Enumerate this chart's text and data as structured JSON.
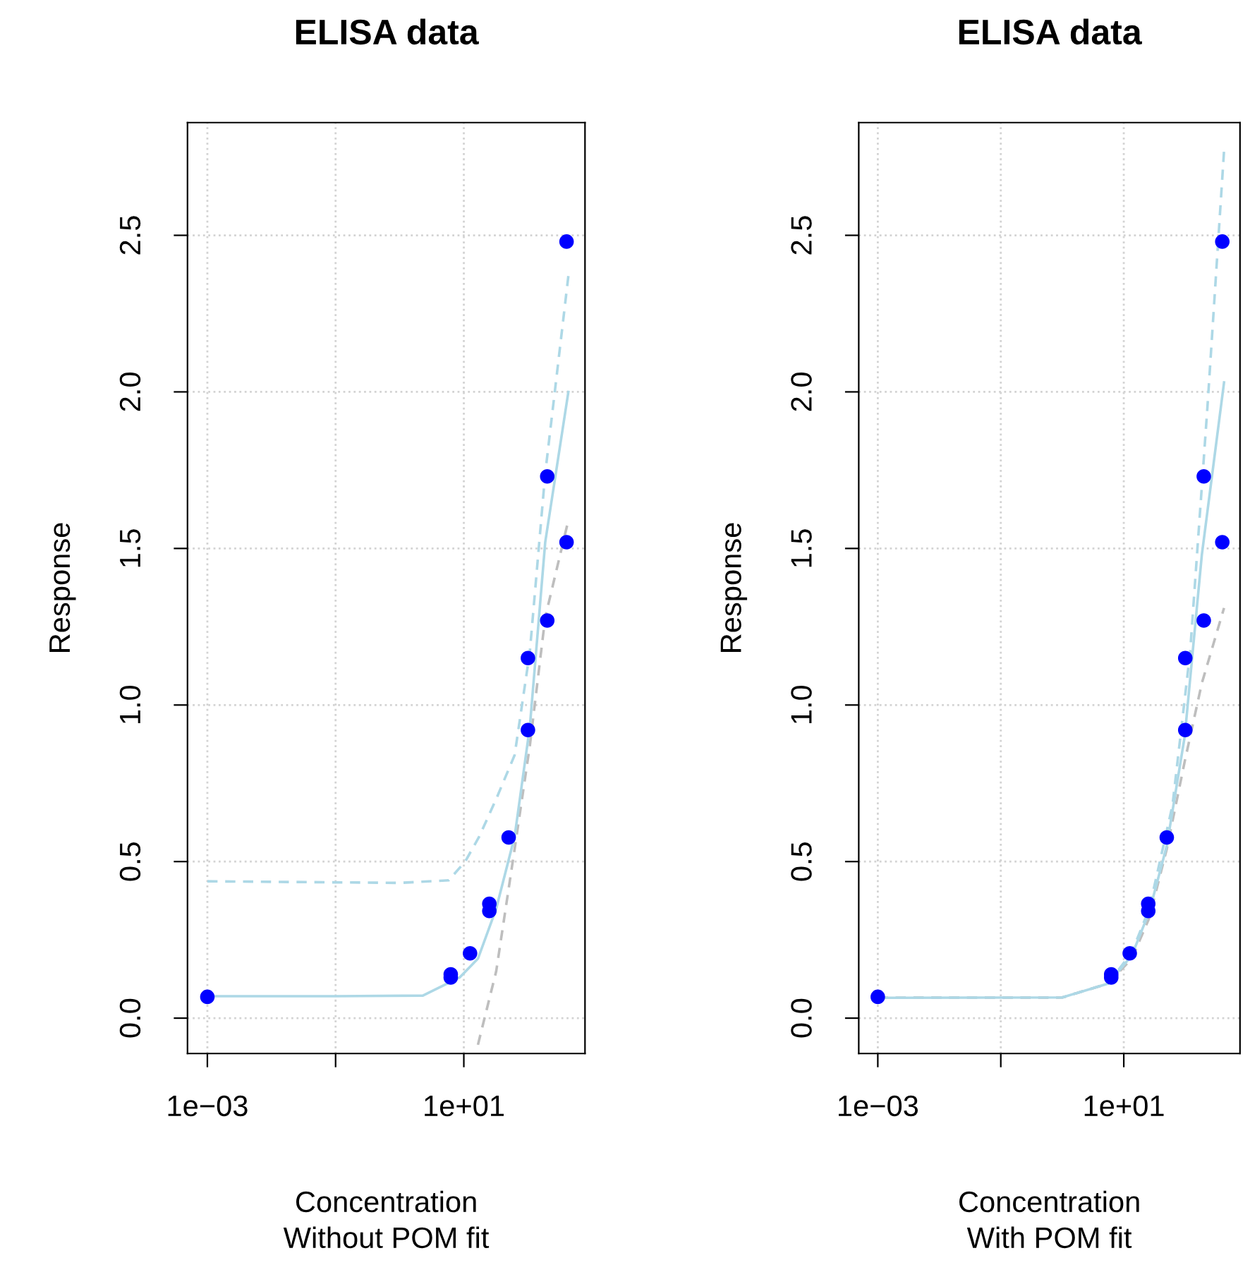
{
  "chart_data": [
    {
      "type": "line",
      "title": "ELISA data",
      "xlabel": "Concentration\nWithout POM fit",
      "ylabel": "Response",
      "log": "x",
      "grid": true,
      "xlim": [
        0.00049,
        776
      ],
      "ylim": [
        -0.113,
        2.86
      ],
      "xticks": [
        {
          "value": 0.001,
          "label": "1e−03"
        },
        {
          "value": 0.1,
          "label": null
        },
        {
          "value": 10,
          "label": "1e+01"
        }
      ],
      "yticks": [
        {
          "value": 0,
          "label": "0.0"
        },
        {
          "value": 0.5,
          "label": "0.5"
        },
        {
          "value": 1,
          "label": "1.0"
        },
        {
          "value": 1.5,
          "label": "1.5"
        },
        {
          "value": 2,
          "label": "2.0"
        },
        {
          "value": 2.5,
          "label": "2.5"
        }
      ],
      "series": [
        {
          "line_style": "dashed",
          "color": "#add8e6",
          "x": [
            0.001,
            1,
            5.8,
            10.5,
            17.4,
            32,
            62,
            107,
            186,
            427
          ],
          "values": [
            0.437,
            0.432,
            0.44,
            0.5,
            0.58,
            0.7,
            0.84,
            1.17,
            1.74,
            2.37
          ]
        },
        {
          "line_style": "dashed",
          "color": "#bebebe",
          "x": [
            16.6,
            32,
            62,
            107,
            186,
            427
          ],
          "values": [
            -0.085,
            0.15,
            0.54,
            0.87,
            1.28,
            1.59
          ]
        },
        {
          "line_style": "solid",
          "color": "#add8e6",
          "x": [
            0.001,
            0.1,
            2.3,
            8.6,
            16.6,
            32,
            62,
            107,
            186,
            427
          ],
          "values": [
            0.07,
            0.07,
            0.072,
            0.13,
            0.19,
            0.35,
            0.58,
            0.93,
            1.52,
            2.0
          ]
        },
        {
          "type": "scatter",
          "marker": "circle",
          "color": "#0000ff",
          "x": [
            0.001,
            6.25,
            6.25,
            12.5,
            25,
            25,
            50,
            100,
            100,
            200,
            200,
            400,
            400
          ],
          "values": [
            0.068,
            0.14,
            0.13,
            0.207,
            0.365,
            0.342,
            0.577,
            1.15,
            0.92,
            1.73,
            1.27,
            2.48,
            1.52
          ]
        }
      ]
    },
    {
      "type": "line",
      "title": "ELISA data",
      "xlabel": "Concentration\nWith POM fit",
      "ylabel": "Response",
      "log": "x",
      "grid": true,
      "xlim": [
        0.00049,
        776
      ],
      "ylim": [
        -0.113,
        2.86
      ],
      "xticks": [
        {
          "value": 0.001,
          "label": "1e−03"
        },
        {
          "value": 0.1,
          "label": null
        },
        {
          "value": 10,
          "label": "1e+01"
        }
      ],
      "yticks": [
        {
          "value": 0,
          "label": "0.0"
        },
        {
          "value": 0.5,
          "label": "0.5"
        },
        {
          "value": 1,
          "label": "1.0"
        },
        {
          "value": 1.5,
          "label": "1.5"
        },
        {
          "value": 2,
          "label": "2.0"
        },
        {
          "value": 2.5,
          "label": "2.5"
        }
      ],
      "series": [
        {
          "line_style": "dashed",
          "color": "#add8e6",
          "x": [
            0.001,
            1,
            5.5,
            13.5,
            26,
            62,
            120,
            229,
            427
          ],
          "values": [
            0.065,
            0.066,
            0.11,
            0.21,
            0.35,
            0.68,
            1.17,
            1.95,
            2.77
          ]
        },
        {
          "line_style": "dashed",
          "color": "#bebebe",
          "x": [
            0.001,
            1,
            5.5,
            13.5,
            26,
            50,
            98,
            186,
            427
          ],
          "values": [
            0.065,
            0.066,
            0.11,
            0.19,
            0.32,
            0.54,
            0.82,
            1.07,
            1.31
          ]
        },
        {
          "line_style": "solid",
          "color": "#add8e6",
          "x": [
            0.001,
            1,
            5.5,
            13.5,
            26,
            50,
            98,
            186,
            427
          ],
          "values": [
            0.065,
            0.066,
            0.11,
            0.2,
            0.34,
            0.55,
            0.9,
            1.48,
            2.03
          ]
        },
        {
          "type": "scatter",
          "marker": "circle",
          "color": "#0000ff",
          "x": [
            0.001,
            6.25,
            6.25,
            12.5,
            25,
            25,
            50,
            100,
            100,
            200,
            200,
            400,
            400
          ],
          "values": [
            0.068,
            0.14,
            0.13,
            0.207,
            0.365,
            0.342,
            0.577,
            1.15,
            0.92,
            1.73,
            1.27,
            2.48,
            1.52
          ]
        }
      ]
    }
  ]
}
